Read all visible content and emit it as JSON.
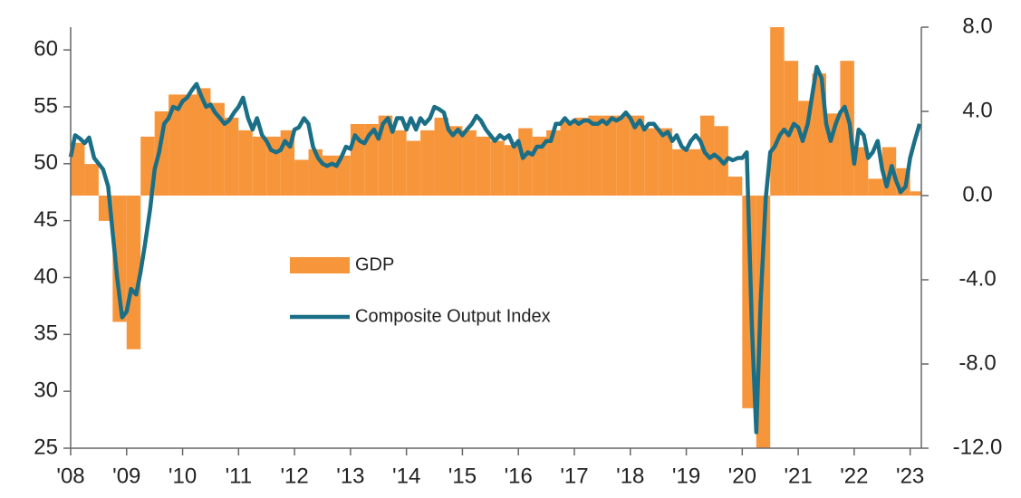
{
  "chart_data": {
    "type": "bar-line",
    "xlim": [
      2008,
      2023.2
    ],
    "xticks": [
      {
        "value": 2008,
        "label": "'08"
      },
      {
        "value": 2009,
        "label": "'09"
      },
      {
        "value": 2010,
        "label": "'10"
      },
      {
        "value": 2011,
        "label": "'11"
      },
      {
        "value": 2012,
        "label": "'12"
      },
      {
        "value": 2013,
        "label": "'13"
      },
      {
        "value": 2014,
        "label": "'14"
      },
      {
        "value": 2015,
        "label": "'15"
      },
      {
        "value": 2016,
        "label": "'16"
      },
      {
        "value": 2017,
        "label": "'17"
      },
      {
        "value": 2018,
        "label": "'18"
      },
      {
        "value": 2019,
        "label": "'19"
      },
      {
        "value": 2020,
        "label": "'20"
      },
      {
        "value": 2021,
        "label": "'21"
      },
      {
        "value": 2022,
        "label": "'22"
      },
      {
        "value": 2023,
        "label": "'23"
      }
    ],
    "ylim": [
      25,
      62
    ],
    "yticks": [
      25,
      30,
      35,
      40,
      45,
      50,
      55,
      60
    ],
    "y2lim": [
      -12,
      8
    ],
    "y2ticks": [
      {
        "value": -12,
        "label": "-12.0"
      },
      {
        "value": -8,
        "label": "-8.0"
      },
      {
        "value": -4,
        "label": "-4.0"
      },
      {
        "value": 0,
        "label": "0.0"
      },
      {
        "value": 4,
        "label": "4.0"
      },
      {
        "value": 8,
        "label": "8.0"
      }
    ],
    "legend": "center",
    "series": [
      {
        "name": "GDP",
        "type": "bar",
        "axis": "y2",
        "color": "#f7953b",
        "x": [
          2008,
          2008.25,
          2008.5,
          2008.75,
          2009,
          2009.25,
          2009.5,
          2009.75,
          2010,
          2010.25,
          2010.5,
          2010.75,
          2011,
          2011.25,
          2011.5,
          2011.75,
          2012,
          2012.25,
          2012.5,
          2012.75,
          2013,
          2013.25,
          2013.5,
          2013.75,
          2014,
          2014.25,
          2014.5,
          2014.75,
          2015,
          2015.25,
          2015.5,
          2015.75,
          2016,
          2016.25,
          2016.5,
          2016.75,
          2017,
          2017.25,
          2017.5,
          2017.75,
          2018,
          2018.25,
          2018.5,
          2018.75,
          2019,
          2019.25,
          2019.5,
          2019.75,
          2020,
          2020.25,
          2020.5,
          2020.75,
          2021,
          2021.25,
          2021.5,
          2021.75,
          2022,
          2022.25,
          2022.5,
          2022.75,
          2023
        ],
        "values": [
          2.5,
          1.5,
          -1.2,
          -6.0,
          -7.3,
          2.8,
          4.0,
          4.8,
          4.8,
          5.1,
          4.4,
          3.7,
          3.1,
          2.8,
          2.8,
          3.1,
          1.7,
          2.2,
          1.9,
          1.9,
          3.4,
          3.4,
          3.8,
          3.1,
          2.6,
          3.1,
          3.7,
          3.3,
          3.1,
          2.8,
          2.6,
          2.4,
          3.2,
          2.8,
          3.1,
          3.5,
          3.7,
          3.8,
          3.8,
          3.8,
          3.8,
          3.2,
          3.2,
          2.2,
          2.2,
          3.8,
          3.3,
          0.9,
          -10.1,
          -12.0,
          8.0,
          6.4,
          4.5,
          5.8,
          3.9,
          6.4,
          2.3,
          0.8,
          2.3,
          1.3,
          0.2
        ]
      },
      {
        "name": "Composite Output Index",
        "type": "line",
        "color": "#1a6f86",
        "x": [
          2008,
          2008.08,
          2008.17,
          2008.25,
          2008.33,
          2008.42,
          2008.5,
          2008.58,
          2008.67,
          2008.75,
          2008.83,
          2008.92,
          2009,
          2009.08,
          2009.17,
          2009.25,
          2009.33,
          2009.42,
          2009.5,
          2009.58,
          2009.67,
          2009.75,
          2009.83,
          2009.92,
          2010,
          2010.08,
          2010.17,
          2010.25,
          2010.33,
          2010.42,
          2010.5,
          2010.58,
          2010.67,
          2010.75,
          2010.83,
          2010.92,
          2011,
          2011.08,
          2011.17,
          2011.25,
          2011.33,
          2011.42,
          2011.5,
          2011.58,
          2011.67,
          2011.75,
          2011.83,
          2011.92,
          2012,
          2012.08,
          2012.17,
          2012.25,
          2012.33,
          2012.42,
          2012.5,
          2012.58,
          2012.67,
          2012.75,
          2012.83,
          2012.92,
          2013,
          2013.08,
          2013.17,
          2013.25,
          2013.33,
          2013.42,
          2013.5,
          2013.58,
          2013.67,
          2013.75,
          2013.83,
          2013.92,
          2014,
          2014.08,
          2014.17,
          2014.25,
          2014.33,
          2014.42,
          2014.5,
          2014.58,
          2014.67,
          2014.75,
          2014.83,
          2014.92,
          2015,
          2015.08,
          2015.17,
          2015.25,
          2015.33,
          2015.42,
          2015.5,
          2015.58,
          2015.67,
          2015.75,
          2015.83,
          2015.92,
          2016,
          2016.08,
          2016.17,
          2016.25,
          2016.33,
          2016.42,
          2016.5,
          2016.58,
          2016.67,
          2016.75,
          2016.83,
          2016.92,
          2017,
          2017.08,
          2017.17,
          2017.25,
          2017.33,
          2017.42,
          2017.5,
          2017.58,
          2017.67,
          2017.75,
          2017.83,
          2017.92,
          2018,
          2018.08,
          2018.17,
          2018.25,
          2018.33,
          2018.42,
          2018.5,
          2018.58,
          2018.67,
          2018.75,
          2018.83,
          2018.92,
          2019,
          2019.08,
          2019.17,
          2019.25,
          2019.33,
          2019.42,
          2019.5,
          2019.58,
          2019.67,
          2019.75,
          2019.83,
          2019.92,
          2020,
          2020.08,
          2020.17,
          2020.25,
          2020.33,
          2020.42,
          2020.5,
          2020.58,
          2020.67,
          2020.75,
          2020.83,
          2020.92,
          2021,
          2021.08,
          2021.17,
          2021.25,
          2021.33,
          2021.42,
          2021.5,
          2021.58,
          2021.67,
          2021.75,
          2021.83,
          2021.92,
          2022,
          2022.08,
          2022.17,
          2022.25,
          2022.33,
          2022.42,
          2022.5,
          2022.58,
          2022.67,
          2022.75,
          2022.83,
          2022.92,
          2023,
          2023.08,
          2023.17
        ],
        "values": [
          50.6,
          52.5,
          52.2,
          51.8,
          52.3,
          50.5,
          50.0,
          49.5,
          48.0,
          44.0,
          40.0,
          36.5,
          37.0,
          39.0,
          38.5,
          40.5,
          43.0,
          46.0,
          49.5,
          51.0,
          53.5,
          54.0,
          55.0,
          54.8,
          55.5,
          55.8,
          56.5,
          57.0,
          56.0,
          55.0,
          55.2,
          54.5,
          54.0,
          53.5,
          53.8,
          54.5,
          55.0,
          55.8,
          54.0,
          53.0,
          54.0,
          52.5,
          52.0,
          51.2,
          51.0,
          51.2,
          52.0,
          51.5,
          53.0,
          53.2,
          54.0,
          53.5,
          51.5,
          50.5,
          50.0,
          49.8,
          50.0,
          49.8,
          50.5,
          51.5,
          51.3,
          52.5,
          52.0,
          51.8,
          52.5,
          53.0,
          52.2,
          53.5,
          54.0,
          52.8,
          54.0,
          54.0,
          53.0,
          54.0,
          53.0,
          54.0,
          53.5,
          54.0,
          55.0,
          54.8,
          54.5,
          53.0,
          52.5,
          53.0,
          52.5,
          53.0,
          53.5,
          54.2,
          53.8,
          53.0,
          52.5,
          52.0,
          52.5,
          52.2,
          52.5,
          51.5,
          52.0,
          50.5,
          51.0,
          50.8,
          51.5,
          51.5,
          52.0,
          52.0,
          53.5,
          53.5,
          54.0,
          53.5,
          53.8,
          53.5,
          53.8,
          53.8,
          53.5,
          53.5,
          53.8,
          53.5,
          54.0,
          53.8,
          54.0,
          54.5,
          54.0,
          53.2,
          53.8,
          53.0,
          53.5,
          53.5,
          53.0,
          52.5,
          52.8,
          52.0,
          52.5,
          51.5,
          51.2,
          52.0,
          52.5,
          52.0,
          51.0,
          50.5,
          50.8,
          50.5,
          50.0,
          50.5,
          50.3,
          50.5,
          50.5,
          51.0,
          36.0,
          26.4,
          38.0,
          47.0,
          51.0,
          51.5,
          52.5,
          53.0,
          52.5,
          53.5,
          53.2,
          52.0,
          53.5,
          56.0,
          58.5,
          57.5,
          53.5,
          52.0,
          53.5,
          54.5,
          55.0,
          53.5,
          50.0,
          53.0,
          52.5,
          50.5,
          51.0,
          52.0,
          49.5,
          48.0,
          49.8,
          48.5,
          47.5,
          48.0,
          50.5,
          52.0,
          53.5
        ]
      }
    ]
  }
}
